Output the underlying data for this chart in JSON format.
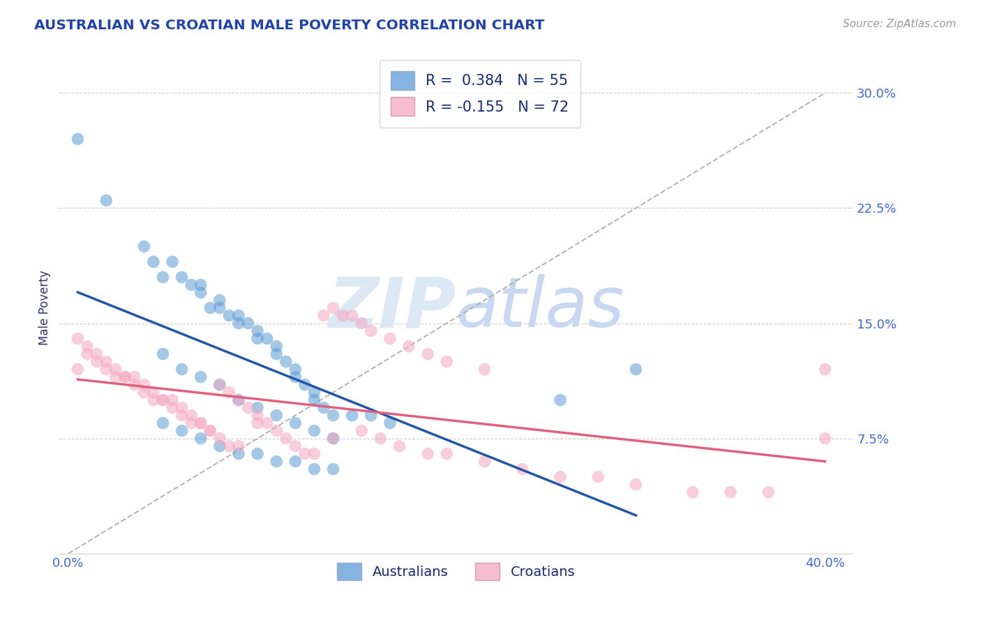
{
  "title": "AUSTRALIAN VS CROATIAN MALE POVERTY CORRELATION CHART",
  "source_text": "Source: ZipAtlas.com",
  "ylabel": "Male Poverty",
  "xlim": [
    -0.005,
    0.415
  ],
  "ylim": [
    0.0,
    0.32
  ],
  "xtick_vals": [
    0.0,
    0.4
  ],
  "xtick_labels": [
    "0.0%",
    "40.0%"
  ],
  "ytick_vals": [
    0.075,
    0.15,
    0.225,
    0.3
  ],
  "ytick_labels": [
    "7.5%",
    "15.0%",
    "22.5%",
    "30.0%"
  ],
  "grid_color": "#cccccc",
  "background_color": "#ffffff",
  "blue_color": "#5b9bd5",
  "pink_color": "#f4a6c0",
  "blue_line_color": "#2255aa",
  "pink_line_color": "#e06080",
  "title_color": "#2244aa",
  "tick_label_color": "#4466cc",
  "ylabel_color": "#333366",
  "legend_r_blue": "0.384",
  "legend_n_blue": "55",
  "legend_r_pink": "-0.155",
  "legend_n_pink": "72",
  "ref_line_color": "#aaaaaa",
  "watermark_color": "#dde8f5",
  "australians_x": [
    0.005,
    0.02,
    0.04,
    0.045,
    0.05,
    0.055,
    0.06,
    0.065,
    0.07,
    0.07,
    0.075,
    0.08,
    0.08,
    0.085,
    0.09,
    0.09,
    0.095,
    0.1,
    0.1,
    0.105,
    0.11,
    0.11,
    0.115,
    0.12,
    0.12,
    0.125,
    0.13,
    0.13,
    0.135,
    0.14,
    0.05,
    0.06,
    0.07,
    0.08,
    0.09,
    0.1,
    0.11,
    0.12,
    0.13,
    0.14,
    0.05,
    0.06,
    0.07,
    0.08,
    0.09,
    0.1,
    0.11,
    0.12,
    0.13,
    0.14,
    0.15,
    0.16,
    0.17,
    0.3,
    0.26
  ],
  "australians_y": [
    0.27,
    0.23,
    0.2,
    0.19,
    0.18,
    0.19,
    0.18,
    0.175,
    0.175,
    0.17,
    0.16,
    0.165,
    0.16,
    0.155,
    0.155,
    0.15,
    0.15,
    0.145,
    0.14,
    0.14,
    0.135,
    0.13,
    0.125,
    0.12,
    0.115,
    0.11,
    0.105,
    0.1,
    0.095,
    0.09,
    0.13,
    0.12,
    0.115,
    0.11,
    0.1,
    0.095,
    0.09,
    0.085,
    0.08,
    0.075,
    0.085,
    0.08,
    0.075,
    0.07,
    0.065,
    0.065,
    0.06,
    0.06,
    0.055,
    0.055,
    0.09,
    0.09,
    0.085,
    0.12,
    0.1
  ],
  "croatians_x": [
    0.005,
    0.01,
    0.015,
    0.02,
    0.025,
    0.03,
    0.035,
    0.04,
    0.045,
    0.05,
    0.055,
    0.06,
    0.065,
    0.07,
    0.075,
    0.08,
    0.085,
    0.09,
    0.095,
    0.1,
    0.1,
    0.105,
    0.11,
    0.115,
    0.12,
    0.125,
    0.13,
    0.135,
    0.14,
    0.145,
    0.15,
    0.155,
    0.16,
    0.17,
    0.18,
    0.19,
    0.2,
    0.22,
    0.14,
    0.155,
    0.165,
    0.175,
    0.19,
    0.2,
    0.22,
    0.24,
    0.26,
    0.28,
    0.3,
    0.33,
    0.35,
    0.37,
    0.4,
    0.005,
    0.01,
    0.015,
    0.02,
    0.025,
    0.03,
    0.035,
    0.04,
    0.045,
    0.05,
    0.055,
    0.06,
    0.065,
    0.07,
    0.075,
    0.08,
    0.085,
    0.09,
    0.4
  ],
  "croatians_y": [
    0.12,
    0.13,
    0.125,
    0.12,
    0.115,
    0.115,
    0.11,
    0.105,
    0.1,
    0.1,
    0.095,
    0.09,
    0.085,
    0.085,
    0.08,
    0.11,
    0.105,
    0.1,
    0.095,
    0.09,
    0.085,
    0.085,
    0.08,
    0.075,
    0.07,
    0.065,
    0.065,
    0.155,
    0.16,
    0.155,
    0.155,
    0.15,
    0.145,
    0.14,
    0.135,
    0.13,
    0.125,
    0.12,
    0.075,
    0.08,
    0.075,
    0.07,
    0.065,
    0.065,
    0.06,
    0.055,
    0.05,
    0.05,
    0.045,
    0.04,
    0.04,
    0.04,
    0.12,
    0.14,
    0.135,
    0.13,
    0.125,
    0.12,
    0.115,
    0.115,
    0.11,
    0.105,
    0.1,
    0.1,
    0.095,
    0.09,
    0.085,
    0.08,
    0.075,
    0.07,
    0.07,
    0.075
  ]
}
